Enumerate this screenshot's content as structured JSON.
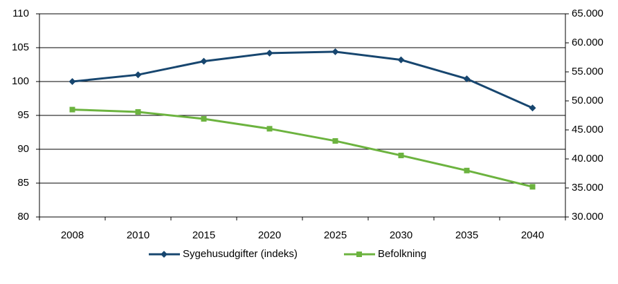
{
  "chart_data": {
    "type": "line",
    "categories": [
      "2008",
      "2010",
      "2015",
      "2020",
      "2025",
      "2030",
      "2035",
      "2040"
    ],
    "series": [
      {
        "name": "Sygehusudgifter (indeks)",
        "color": "#17466f",
        "marker": "diamond",
        "values": [
          100,
          101,
          103,
          104.2,
          104.4,
          103.2,
          100.4,
          96.1
        ]
      },
      {
        "name": "Befolkning",
        "color": "#6cb33f",
        "marker": "square",
        "axis": "y2",
        "values": [
          48500,
          48100,
          46900,
          45200,
          43100,
          40600,
          38000,
          35200
        ]
      }
    ],
    "ylim": [
      80,
      110
    ],
    "yticks": [
      80,
      85,
      90,
      95,
      100,
      105,
      110
    ],
    "y2lim": [
      30000,
      65000
    ],
    "y2ticks": [
      {
        "value": 30000,
        "label": "30.000"
      },
      {
        "value": 35000,
        "label": "35.000"
      },
      {
        "value": 40000,
        "label": "40.000"
      },
      {
        "value": 45000,
        "label": "45.000"
      },
      {
        "value": 50000,
        "label": "50.000"
      },
      {
        "value": 55000,
        "label": "55.000"
      },
      {
        "value": 60000,
        "label": "60.000"
      },
      {
        "value": 65000,
        "label": "65.000"
      }
    ],
    "grid": true,
    "legend": "bottom"
  }
}
